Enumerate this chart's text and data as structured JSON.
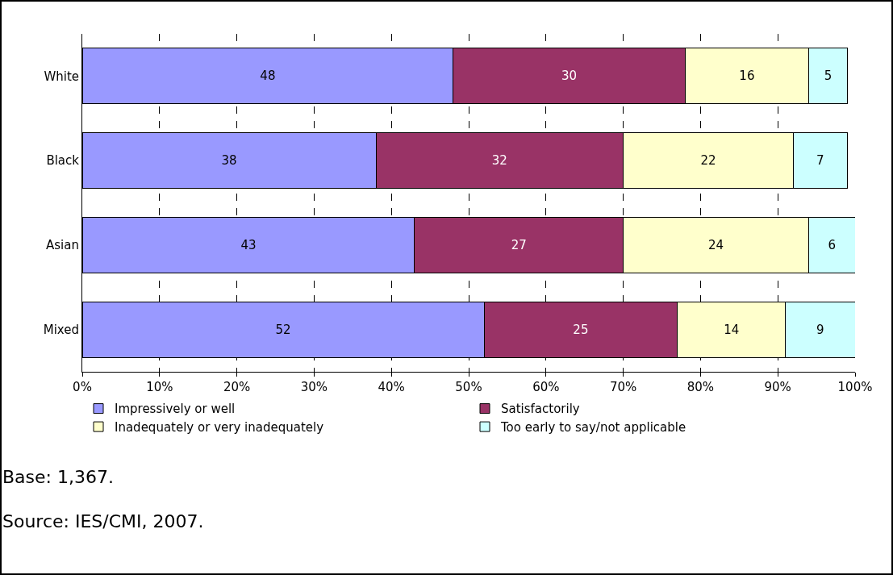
{
  "chart_data": {
    "type": "bar",
    "orientation": "horizontal",
    "stacked": true,
    "categories": [
      "White",
      "Black",
      "Asian",
      "Mixed"
    ],
    "series": [
      {
        "name": "Impressively or well",
        "color": "#9999ff",
        "values": [
          48,
          38,
          43,
          52
        ]
      },
      {
        "name": "Satisfactorily",
        "color": "#993366",
        "values": [
          30,
          32,
          27,
          25
        ]
      },
      {
        "name": "Inadequately or very inadequately",
        "color": "#ffffcc",
        "values": [
          16,
          22,
          24,
          14
        ]
      },
      {
        "name": "Too early to say/not applicable",
        "color": "#ccffff",
        "values": [
          5,
          7,
          6,
          9
        ]
      }
    ],
    "xlim": [
      0,
      100
    ],
    "xticks": [
      {
        "value": 0,
        "label": "0%"
      },
      {
        "value": 10,
        "label": "10%"
      },
      {
        "value": 20,
        "label": "20%"
      },
      {
        "value": 30,
        "label": "30%"
      },
      {
        "value": 40,
        "label": "40%"
      },
      {
        "value": 50,
        "label": "50%"
      },
      {
        "value": 60,
        "label": "60%"
      },
      {
        "value": 70,
        "label": "70%"
      },
      {
        "value": 80,
        "label": "80%"
      },
      {
        "value": 90,
        "label": "90%"
      },
      {
        "value": 100,
        "label": "100%"
      }
    ],
    "grid": "x",
    "legend": "bottom",
    "data_labels": true,
    "annotations": [
      "Base: 1,367.",
      "Source: IES/CMI, 2007."
    ]
  }
}
